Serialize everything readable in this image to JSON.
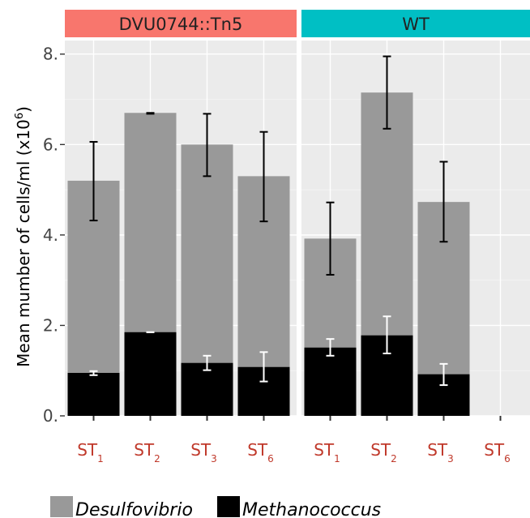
{
  "chart_data": {
    "type": "bar",
    "stacked": true,
    "ylabel": "Mean mumber of cells/ml (x10",
    "ylabel_sup": "6",
    "ylabel_close": ")",
    "ylim": [
      0,
      8.3
    ],
    "yticks": [
      0,
      2,
      4,
      6,
      8
    ],
    "ytick_labels": [
      "0.",
      "2.",
      "4.",
      "6.",
      "8."
    ],
    "categories": [
      {
        "base": "ST",
        "sub": "1"
      },
      {
        "base": "ST",
        "sub": "2"
      },
      {
        "base": "ST",
        "sub": "3"
      },
      {
        "base": "ST",
        "sub": "6"
      }
    ],
    "panels": [
      {
        "title": "DVU0744::Tn5",
        "color": "#F8766D",
        "total": [
          5.2,
          6.7,
          6.0,
          5.3
        ],
        "total_err": [
          [
            4.32,
            6.06
          ],
          [
            6.68,
            6.7
          ],
          [
            5.3,
            6.68
          ],
          [
            4.3,
            6.28
          ]
        ],
        "methanococcus": [
          0.95,
          1.85,
          1.17,
          1.08
        ],
        "methanococcus_err": [
          [
            0.9,
            0.99
          ],
          [
            1.85,
            1.85
          ],
          [
            1.01,
            1.33
          ],
          [
            0.76,
            1.41
          ]
        ]
      },
      {
        "title": "WT",
        "color": "#00BFC4",
        "total": [
          3.92,
          7.15,
          4.73,
          null
        ],
        "total_err": [
          [
            3.12,
            4.72
          ],
          [
            6.35,
            7.95
          ],
          [
            3.85,
            5.62
          ],
          null
        ],
        "methanococcus": [
          1.51,
          1.78,
          0.92,
          null
        ],
        "methanococcus_err": [
          [
            1.33,
            1.7
          ],
          [
            1.38,
            2.2
          ],
          [
            0.68,
            1.15
          ],
          null
        ]
      }
    ],
    "series": [
      {
        "name": "Desulfovibrio",
        "color": "#999999"
      },
      {
        "name": "Methanococcus",
        "color": "#000000"
      }
    ],
    "panel_background": "#EBEBEB",
    "grid": true,
    "legend_position": "bottom"
  }
}
